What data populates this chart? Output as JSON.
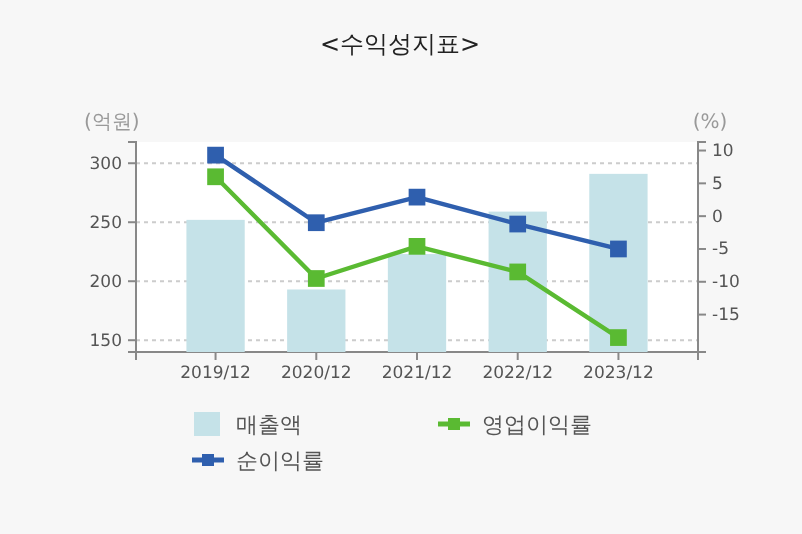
{
  "chart_data": {
    "type": "bar",
    "title": "<수익성지표>",
    "ylabel": "(억원)",
    "y2label": "(%)",
    "categories": [
      "2019/12",
      "2020/12",
      "2021/12",
      "2022/12",
      "2023/12"
    ],
    "series": [
      {
        "name": "매출액",
        "color": "#c5e2e8",
        "values": [
          252,
          193,
          223,
          259,
          291
        ]
      },
      {
        "name": "영업이익률",
        "type": "line",
        "axis": "y2",
        "color": "#5aba32",
        "values": [
          6,
          -9.5,
          -4.6,
          -8.5,
          -18.5
        ]
      },
      {
        "name": "순이익률",
        "type": "line",
        "axis": "y2",
        "color": "#2f5fae",
        "values": [
          9.3,
          -1,
          2.9,
          -1.2,
          -5
        ]
      }
    ],
    "ylim": [
      140,
      318
    ],
    "yticks": [
      150,
      200,
      250,
      300
    ],
    "y2lim": [
      -20.7,
      11.3
    ],
    "y2ticks": [
      -15,
      -10,
      -5,
      0,
      5,
      10
    ],
    "grid": "y",
    "legend": "bottom",
    "marker": "square",
    "line_style": "solid"
  }
}
